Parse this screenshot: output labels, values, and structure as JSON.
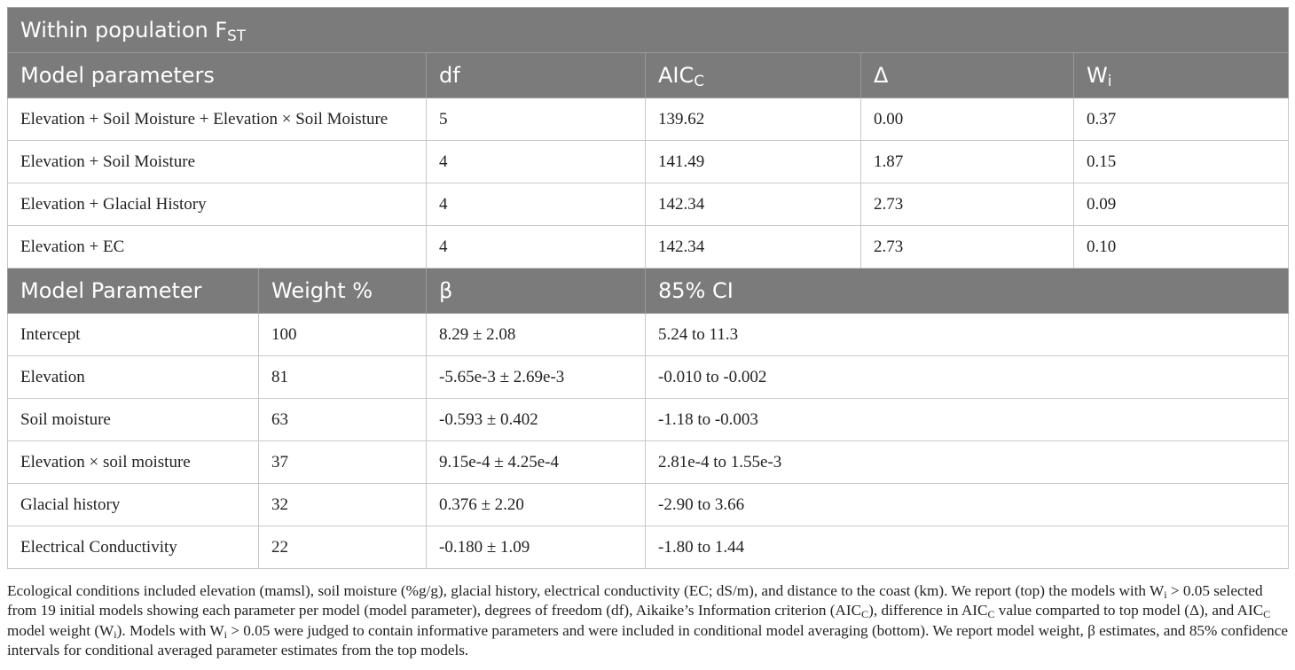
{
  "title": {
    "text": "Within population F",
    "sub": "ST"
  },
  "models_header": {
    "parameters": "Model parameters",
    "df": "df",
    "aicc": "AIC",
    "aicc_sub": "C",
    "delta": "Δ",
    "wi": "W",
    "wi_sub": "i"
  },
  "models": [
    {
      "params": "Elevation + Soil Moisture + Elevation × Soil Moisture",
      "df": "5",
      "aicc": "139.62",
      "delta": "0.00",
      "wi": "0.37"
    },
    {
      "params": "Elevation + Soil Moisture",
      "df": "4",
      "aicc": "141.49",
      "delta": "1.87",
      "wi": "0.15"
    },
    {
      "params": "Elevation + Glacial History",
      "df": "4",
      "aicc": "142.34",
      "delta": "2.73",
      "wi": "0.09"
    },
    {
      "params": "Elevation + EC",
      "df": "4",
      "aicc": "142.34",
      "delta": "2.73",
      "wi": "0.10"
    }
  ],
  "avg_header": {
    "parameter": "Model Parameter",
    "weight": "Weight %",
    "beta": "β",
    "ci": "85% CI"
  },
  "averaged": [
    {
      "param": "Intercept",
      "weight": "100",
      "beta": "8.29 ± 2.08",
      "ci": "5.24 to 11.3"
    },
    {
      "param": "Elevation",
      "weight": "81",
      "beta": "-5.65e-3 ± 2.69e-3",
      "ci": "-0.010 to -0.002"
    },
    {
      "param": "Soil moisture",
      "weight": "63",
      "beta": "-0.593 ± 0.402",
      "ci": "-1.18 to -0.003"
    },
    {
      "param": "Elevation × soil moisture",
      "weight": "37",
      "beta": "9.15e-4 ± 4.25e-4",
      "ci": "2.81e-4 to 1.55e-3"
    },
    {
      "param": "Glacial history",
      "weight": "32",
      "beta": "0.376 ± 2.20",
      "ci": "-2.90 to 3.66"
    },
    {
      "param": "Electrical Conductivity",
      "weight": "22",
      "beta": "-0.180 ± 1.09",
      "ci": "-1.80 to 1.44"
    }
  ],
  "footnote": {
    "p1": "Ecological conditions included elevation (mamsl), soil moisture (%g/g), glacial history, electrical conductivity (EC; dS/m), and distance to the coast (km). We report (top) the models with W",
    "i_1": "i",
    "p2": " > 0.05 selected from 19 initial models showing each parameter per model (model parameter), degrees of freedom (df), Aikaike’s Information criterion (AIC",
    "c_1": "C",
    "p3": "), difference in AIC",
    "c_2": "C",
    "p4": " value comparted to top model (Δ), and AIC",
    "c_3": "C",
    "p5": " model weight (W",
    "i_2": "i",
    "p6": "). Models with W",
    "i_3": "i",
    "p7": " > 0.05 were judged to contain informative parameters and were included in conditional model averaging (bottom). We report model weight, β estimates, and 85% confidence intervals for conditional averaged parameter estimates from the top models."
  }
}
